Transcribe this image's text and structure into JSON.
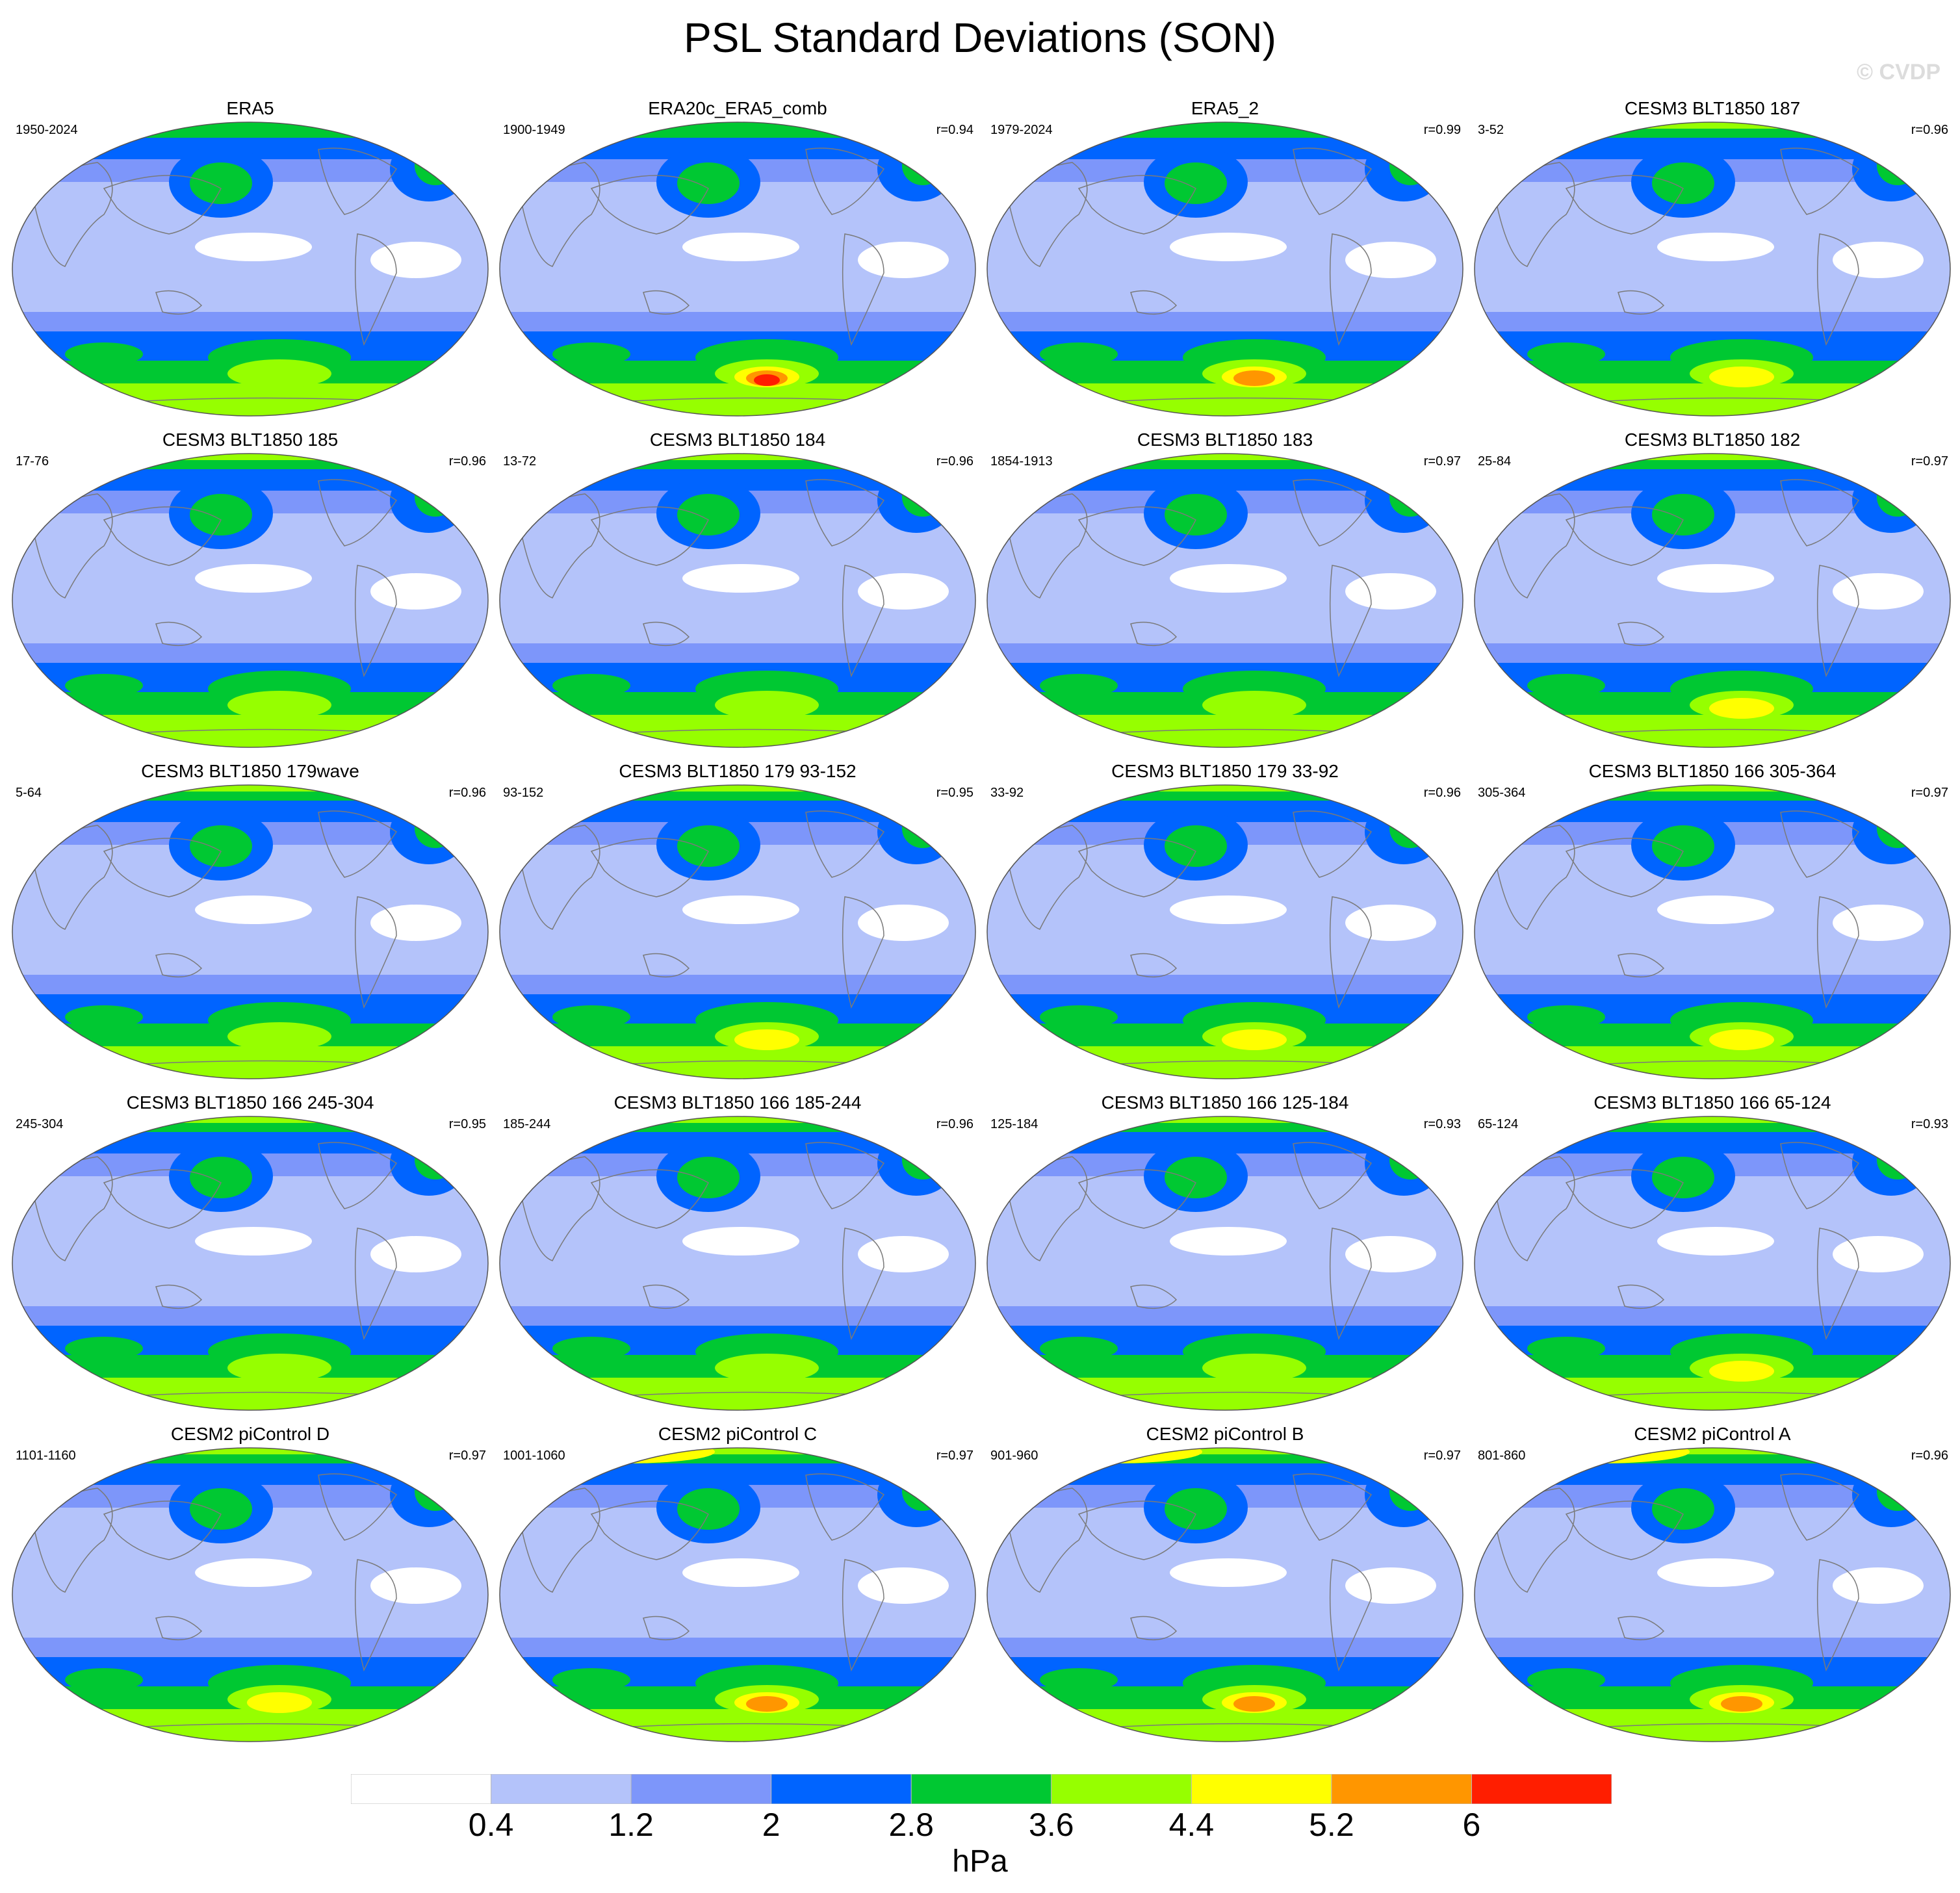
{
  "title": "PSL Standard Deviations (SON)",
  "watermark": "© CVDP",
  "colorbar": {
    "unit": "hPa",
    "levels": [
      "0.4",
      "1.2",
      "2",
      "2.8",
      "3.6",
      "4.4",
      "5.2",
      "6"
    ],
    "colors": [
      "#ffffff",
      "#b4c3fa",
      "#7d96fa",
      "#0064ff",
      "#00c832",
      "#96ff00",
      "#ffff00",
      "#ff9600",
      "#ff1e00"
    ]
  },
  "panels": [
    {
      "title": "ERA5",
      "years": "1950-2024",
      "corr": "",
      "sh": 5,
      "nh": 3
    },
    {
      "title": "ERA20c_ERA5_comb",
      "years": "1900-1949",
      "corr": "r=0.94",
      "sh": 8,
      "nh": 3
    },
    {
      "title": "ERA5_2",
      "years": "1979-2024",
      "corr": "r=0.99",
      "sh": 7,
      "nh": 3
    },
    {
      "title": "CESM3 BLT1850 187",
      "years": "3-52",
      "corr": "r=0.96",
      "sh": 6,
      "nh": 4
    },
    {
      "title": "CESM3 BLT1850 185",
      "years": "17-76",
      "corr": "r=0.96",
      "sh": 5,
      "nh": 4
    },
    {
      "title": "CESM3 BLT1850 184",
      "years": "13-72",
      "corr": "r=0.96",
      "sh": 5,
      "nh": 4
    },
    {
      "title": "CESM3 BLT1850 183",
      "years": "1854-1913",
      "corr": "r=0.97",
      "sh": 5,
      "nh": 4
    },
    {
      "title": "CESM3 BLT1850 182",
      "years": "25-84",
      "corr": "r=0.97",
      "sh": 6,
      "nh": 4
    },
    {
      "title": "CESM3 BLT1850 179wave",
      "years": "5-64",
      "corr": "r=0.96",
      "sh": 5,
      "nh": 4
    },
    {
      "title": "CESM3 BLT1850 179 93-152",
      "years": "93-152",
      "corr": "r=0.95",
      "sh": 6,
      "nh": 4
    },
    {
      "title": "CESM3 BLT1850 179 33-92",
      "years": "33-92",
      "corr": "r=0.96",
      "sh": 6,
      "nh": 4
    },
    {
      "title": "CESM3 BLT1850 166 305-364",
      "years": "305-364",
      "corr": "r=0.97",
      "sh": 6,
      "nh": 4
    },
    {
      "title": "CESM3 BLT1850 166 245-304",
      "years": "245-304",
      "corr": "r=0.95",
      "sh": 5,
      "nh": 4
    },
    {
      "title": "CESM3 BLT1850 166 185-244",
      "years": "185-244",
      "corr": "r=0.96",
      "sh": 5,
      "nh": 4
    },
    {
      "title": "CESM3 BLT1850 166 125-184",
      "years": "125-184",
      "corr": "r=0.93",
      "sh": 5,
      "nh": 4
    },
    {
      "title": "CESM3 BLT1850 166 65-124",
      "years": "65-124",
      "corr": "r=0.93",
      "sh": 6,
      "nh": 4
    },
    {
      "title": "CESM2 piControl D",
      "years": "1101-1160",
      "corr": "r=0.97",
      "sh": 6,
      "nh": 4
    },
    {
      "title": "CESM2 piControl C",
      "years": "1001-1060",
      "corr": "r=0.97",
      "sh": 7,
      "nh": 5
    },
    {
      "title": "CESM2 piControl B",
      "years": "901-960",
      "corr": "r=0.97",
      "sh": 7,
      "nh": 5
    },
    {
      "title": "CESM2 piControl A",
      "years": "801-860",
      "corr": "r=0.96",
      "sh": 7,
      "nh": 5
    }
  ]
}
